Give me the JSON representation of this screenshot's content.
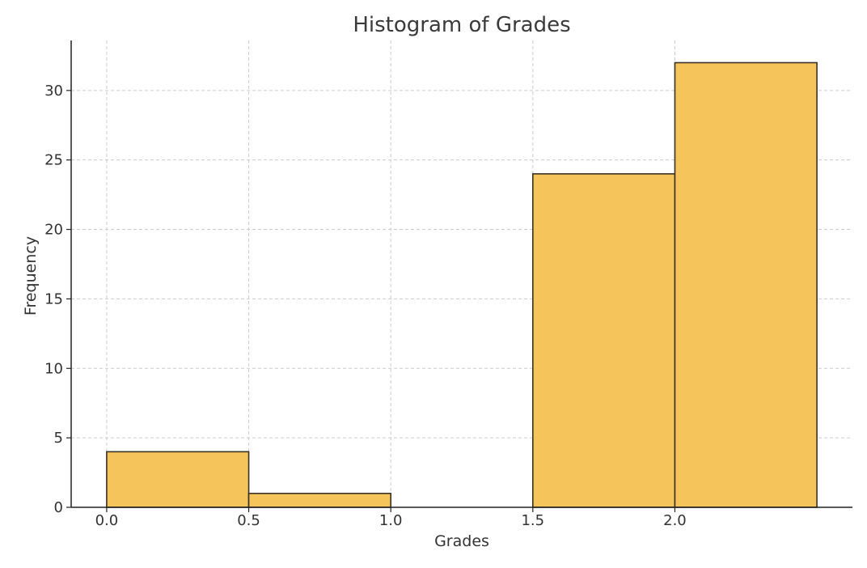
{
  "chart_data": {
    "type": "bar",
    "title": "Histogram of Grades",
    "xlabel": "Grades",
    "ylabel": "Frequency",
    "bins": [
      {
        "start": 0.0,
        "end": 0.5,
        "value": 4
      },
      {
        "start": 0.5,
        "end": 1.0,
        "value": 1
      },
      {
        "start": 1.0,
        "end": 1.5,
        "value": 0
      },
      {
        "start": 1.5,
        "end": 2.0,
        "value": 24
      },
      {
        "start": 2.0,
        "end": 2.5,
        "value": 32
      }
    ],
    "xticks": [
      "0.0",
      "0.5",
      "1.0",
      "1.5",
      "2.0"
    ],
    "xtick_values": [
      0.0,
      0.5,
      1.0,
      1.5,
      2.0
    ],
    "yticks": [
      "0",
      "5",
      "10",
      "15",
      "20",
      "25",
      "30"
    ],
    "ytick_values": [
      0,
      5,
      10,
      15,
      20,
      25,
      30
    ],
    "xlim": [
      -0.125,
      2.625
    ],
    "ylim": [
      0,
      33.6
    ],
    "grid": true,
    "bar_color": "#f5c45b",
    "edge_color": "#3a3226"
  }
}
